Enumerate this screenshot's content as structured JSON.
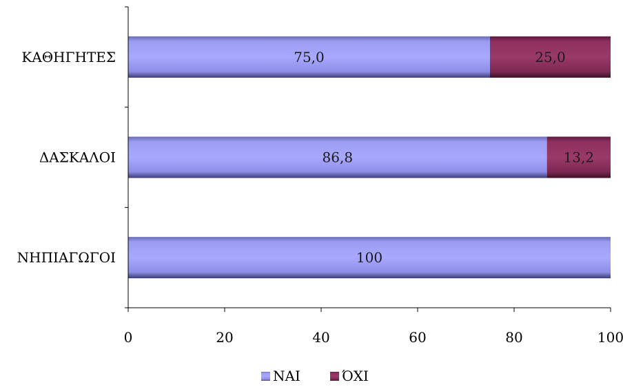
{
  "chart_data": {
    "type": "bar",
    "orientation": "horizontal",
    "stacked": true,
    "categories": [
      "ΚΑΘΗΓΗΤΕΣ",
      "ΔΑΣΚΑΛΟΙ",
      "ΝΗΠΙΑΓΩΓΟΙ"
    ],
    "series": [
      {
        "name": "ΝΑΙ",
        "values": [
          75.0,
          86.8,
          100
        ],
        "labels": [
          "75,0",
          "86,8",
          "100"
        ],
        "color": "#9999ff"
      },
      {
        "name": "ΌΧΙ",
        "values": [
          25.0,
          13.2,
          0
        ],
        "labels": [
          "25,0",
          "13,2",
          ""
        ],
        "color": "#993366"
      }
    ],
    "xlim": [
      0,
      100
    ],
    "xticks": [
      0,
      20,
      40,
      60,
      80,
      100
    ],
    "xtick_labels": [
      "0",
      "20",
      "40",
      "60",
      "80",
      "100"
    ],
    "title": "",
    "xlabel": "",
    "ylabel": "",
    "grid": false,
    "legend_position": "bottom"
  }
}
